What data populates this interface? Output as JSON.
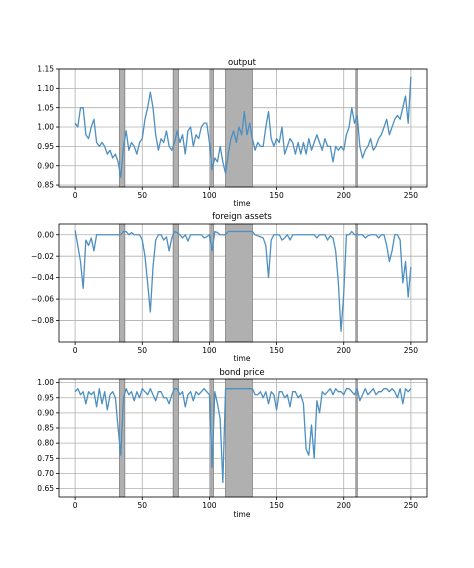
{
  "chart_data": [
    {
      "type": "line",
      "title": "output",
      "xlabel": "time",
      "ylabel": "",
      "xlim": [
        -12,
        262
      ],
      "ylim": [
        0.845,
        1.15
      ],
      "xticks": [
        0,
        50,
        100,
        150,
        200,
        250
      ],
      "yticks": [
        0.85,
        0.9,
        0.95,
        1.0,
        1.05,
        1.1,
        1.15
      ],
      "ytick_labels": [
        "0.85",
        "0.90",
        "0.95",
        "1.00",
        "1.05",
        "1.10",
        "1.15"
      ],
      "grid": true,
      "line_color": "#4c8fc0",
      "shade_color": "#b0b0b0",
      "shaded_regions": [
        [
          33,
          37
        ],
        [
          73,
          77
        ],
        [
          101,
          103
        ],
        [
          112,
          132
        ],
        [
          209,
          210
        ]
      ],
      "x": [
        0,
        2,
        4,
        6,
        8,
        10,
        12,
        14,
        16,
        18,
        20,
        22,
        24,
        26,
        28,
        30,
        32,
        34,
        36,
        38,
        40,
        42,
        44,
        46,
        48,
        50,
        52,
        54,
        56,
        58,
        60,
        62,
        64,
        66,
        68,
        70,
        72,
        74,
        76,
        78,
        80,
        82,
        84,
        86,
        88,
        90,
        92,
        94,
        96,
        98,
        100,
        102,
        104,
        106,
        108,
        110,
        112,
        114,
        116,
        118,
        120,
        122,
        124,
        126,
        128,
        130,
        132,
        134,
        136,
        138,
        140,
        142,
        144,
        146,
        148,
        150,
        152,
        154,
        156,
        158,
        160,
        162,
        164,
        166,
        168,
        170,
        172,
        174,
        176,
        178,
        180,
        182,
        184,
        186,
        188,
        190,
        192,
        194,
        196,
        198,
        200,
        202,
        204,
        206,
        208,
        210,
        212,
        214,
        216,
        218,
        220,
        222,
        224,
        226,
        228,
        230,
        232,
        234,
        236,
        238,
        240,
        242,
        244,
        246,
        248,
        250
      ],
      "y": [
        1.01,
        1.0,
        1.05,
        1.05,
        0.98,
        0.97,
        1.0,
        1.02,
        0.96,
        0.95,
        0.96,
        0.95,
        0.93,
        0.94,
        0.92,
        0.93,
        0.91,
        0.87,
        0.95,
        0.99,
        0.94,
        0.96,
        0.95,
        0.93,
        0.96,
        0.97,
        1.02,
        1.05,
        1.09,
        1.05,
        0.98,
        0.94,
        0.97,
        0.96,
        0.99,
        0.95,
        0.94,
        0.96,
        0.99,
        0.96,
        0.98,
        0.93,
        0.99,
        1.0,
        0.95,
        0.98,
        0.97,
        1.0,
        1.01,
        1.01,
        0.96,
        0.89,
        0.92,
        0.91,
        0.95,
        0.91,
        0.88,
        0.93,
        0.97,
        0.99,
        0.96,
        1.0,
        0.98,
        1.04,
        0.98,
        1.01,
        0.97,
        0.94,
        0.96,
        0.95,
        0.95,
        1.0,
        1.04,
        0.97,
        0.95,
        0.97,
        0.96,
        1.0,
        0.93,
        0.95,
        0.97,
        0.96,
        0.93,
        0.96,
        0.93,
        0.96,
        0.93,
        0.97,
        0.94,
        0.96,
        0.98,
        0.96,
        0.94,
        0.97,
        0.95,
        0.95,
        0.91,
        0.95,
        0.94,
        0.95,
        0.94,
        0.98,
        1.0,
        1.05,
        1.01,
        1.03,
        0.95,
        0.92,
        0.94,
        0.95,
        0.97,
        0.94,
        0.95,
        0.97,
        0.98,
        1.0,
        1.02,
        0.98,
        1.0,
        1.02,
        1.03,
        1.02,
        1.05,
        1.08,
        1.01,
        1.13
      ]
    },
    {
      "type": "line",
      "title": "foreign assets",
      "xlabel": "time",
      "ylabel": "",
      "xlim": [
        -12,
        262
      ],
      "ylim": [
        -0.1,
        0.01
      ],
      "xticks": [
        0,
        50,
        100,
        150,
        200,
        250
      ],
      "yticks": [
        -0.08,
        -0.06,
        -0.04,
        -0.02,
        0.0
      ],
      "ytick_labels": [
        "−0.08",
        "−0.06",
        "−0.04",
        "−0.02",
        "0.00"
      ],
      "grid": true,
      "line_color": "#4c8fc0",
      "shade_color": "#b0b0b0",
      "shaded_regions": [
        [
          33,
          37
        ],
        [
          73,
          77
        ],
        [
          101,
          103
        ],
        [
          112,
          132
        ],
        [
          209,
          210
        ]
      ],
      "x": [
        0,
        2,
        4,
        6,
        8,
        10,
        12,
        14,
        16,
        18,
        20,
        22,
        24,
        26,
        28,
        30,
        32,
        34,
        36,
        38,
        40,
        42,
        44,
        46,
        48,
        50,
        52,
        54,
        56,
        58,
        60,
        62,
        64,
        66,
        68,
        70,
        72,
        74,
        76,
        78,
        80,
        82,
        84,
        86,
        88,
        90,
        92,
        94,
        96,
        98,
        100,
        102,
        104,
        106,
        108,
        110,
        112,
        114,
        116,
        118,
        120,
        122,
        124,
        126,
        128,
        130,
        132,
        134,
        136,
        138,
        140,
        142,
        144,
        146,
        148,
        150,
        152,
        154,
        156,
        158,
        160,
        162,
        164,
        166,
        168,
        170,
        172,
        174,
        176,
        178,
        180,
        182,
        184,
        186,
        188,
        190,
        192,
        194,
        196,
        198,
        200,
        202,
        204,
        206,
        208,
        210,
        212,
        214,
        216,
        218,
        220,
        222,
        224,
        226,
        228,
        230,
        232,
        234,
        236,
        238,
        240,
        242,
        244,
        246,
        248,
        250
      ],
      "y": [
        0.004,
        -0.01,
        -0.025,
        -0.05,
        -0.005,
        -0.01,
        -0.003,
        -0.015,
        0.0,
        0.0,
        0.0,
        0.0,
        0.0,
        0.0,
        0.0,
        0.0,
        0.0,
        0.0,
        0.003,
        0.003,
        0.0,
        0.002,
        0.0,
        0.0,
        0.0,
        -0.005,
        -0.02,
        -0.045,
        -0.072,
        -0.03,
        -0.005,
        0.0,
        0.0,
        -0.005,
        -0.002,
        -0.015,
        -0.003,
        0.003,
        0.002,
        0.0,
        -0.003,
        0.0,
        -0.006,
        0.0,
        0.0,
        0.0,
        0.0,
        0.0,
        -0.003,
        -0.002,
        0.0,
        -0.015,
        0.003,
        0.002,
        0.0,
        0.0,
        0.0,
        0.003,
        0.003,
        0.003,
        0.003,
        0.003,
        0.003,
        0.003,
        0.003,
        0.003,
        0.003,
        0.0,
        -0.001,
        -0.002,
        -0.003,
        -0.01,
        -0.04,
        -0.005,
        0.0,
        0.0,
        0.0,
        -0.005,
        -0.003,
        0.0,
        -0.005,
        0.0,
        0.0,
        0.0,
        0.0,
        0.0,
        0.0,
        0.0,
        0.0,
        0.0,
        -0.003,
        0.0,
        0.0,
        0.0,
        -0.005,
        -0.001,
        -0.003,
        -0.015,
        -0.045,
        -0.09,
        -0.055,
        0.0,
        0.0,
        0.003,
        0.0,
        0.0,
        0.0,
        0.0,
        -0.003,
        -0.001,
        0.0,
        0.0,
        0.0,
        -0.003,
        0.0,
        0.0,
        -0.01,
        -0.025,
        -0.015,
        0.0,
        0.0,
        -0.005,
        -0.045,
        -0.025,
        -0.058,
        -0.03
      ]
    },
    {
      "type": "line",
      "title": "bond price",
      "xlabel": "time",
      "ylabel": "",
      "xlim": [
        -12,
        262
      ],
      "ylim": [
        0.622,
        1.012
      ],
      "xticks": [
        0,
        50,
        100,
        150,
        200,
        250
      ],
      "yticks": [
        0.65,
        0.7,
        0.75,
        0.8,
        0.85,
        0.9,
        0.95,
        1.0
      ],
      "ytick_labels": [
        "0.65",
        "0.70",
        "0.75",
        "0.80",
        "0.85",
        "0.90",
        "0.95",
        "1.00"
      ],
      "grid": true,
      "line_color": "#4c8fc0",
      "shade_color": "#b0b0b0",
      "shaded_regions": [
        [
          33,
          37
        ],
        [
          73,
          77
        ],
        [
          101,
          103
        ],
        [
          112,
          132
        ],
        [
          209,
          210
        ]
      ],
      "x": [
        0,
        2,
        4,
        6,
        8,
        10,
        12,
        14,
        16,
        18,
        20,
        22,
        24,
        26,
        28,
        30,
        32,
        34,
        36,
        38,
        40,
        42,
        44,
        46,
        48,
        50,
        52,
        54,
        56,
        58,
        60,
        62,
        64,
        66,
        68,
        70,
        72,
        74,
        76,
        78,
        80,
        82,
        84,
        86,
        88,
        90,
        92,
        94,
        96,
        98,
        100,
        102,
        104,
        106,
        108,
        110,
        112,
        114,
        116,
        118,
        120,
        122,
        124,
        126,
        128,
        130,
        132,
        134,
        136,
        138,
        140,
        142,
        144,
        146,
        148,
        150,
        152,
        154,
        156,
        158,
        160,
        162,
        164,
        166,
        168,
        170,
        172,
        174,
        176,
        178,
        180,
        182,
        184,
        186,
        188,
        190,
        192,
        194,
        196,
        198,
        200,
        202,
        204,
        206,
        208,
        210,
        212,
        214,
        216,
        218,
        220,
        222,
        224,
        226,
        228,
        230,
        232,
        234,
        236,
        238,
        240,
        242,
        244,
        246,
        248,
        250
      ],
      "y": [
        0.97,
        0.98,
        0.96,
        0.97,
        0.93,
        0.97,
        0.96,
        0.97,
        0.92,
        0.98,
        0.93,
        0.97,
        0.91,
        0.96,
        0.97,
        0.95,
        0.85,
        0.76,
        0.95,
        0.98,
        0.96,
        0.97,
        0.94,
        0.97,
        0.95,
        0.98,
        0.97,
        0.96,
        0.98,
        0.96,
        0.94,
        0.97,
        0.97,
        0.95,
        0.95,
        0.93,
        0.96,
        0.98,
        0.98,
        0.96,
        0.97,
        0.92,
        0.96,
        0.97,
        0.94,
        0.97,
        0.96,
        0.97,
        0.98,
        0.97,
        0.96,
        0.72,
        0.97,
        0.93,
        0.88,
        0.67,
        0.98,
        0.98,
        0.98,
        0.98,
        0.98,
        0.98,
        0.98,
        0.98,
        0.98,
        0.98,
        0.98,
        0.96,
        0.96,
        0.97,
        0.95,
        0.97,
        0.93,
        0.97,
        0.96,
        0.91,
        0.97,
        0.97,
        0.95,
        0.96,
        0.92,
        0.97,
        0.97,
        0.95,
        0.96,
        0.93,
        0.78,
        0.76,
        0.86,
        0.75,
        0.94,
        0.9,
        0.97,
        0.96,
        0.97,
        0.98,
        0.96,
        0.98,
        0.97,
        0.97,
        0.96,
        0.98,
        0.98,
        0.97,
        0.96,
        0.98,
        0.94,
        0.96,
        0.98,
        0.96,
        0.97,
        0.98,
        0.96,
        0.97,
        0.97,
        0.98,
        0.98,
        0.97,
        0.98,
        0.97,
        0.95,
        0.98,
        0.93,
        0.98,
        0.97,
        0.98
      ]
    }
  ]
}
